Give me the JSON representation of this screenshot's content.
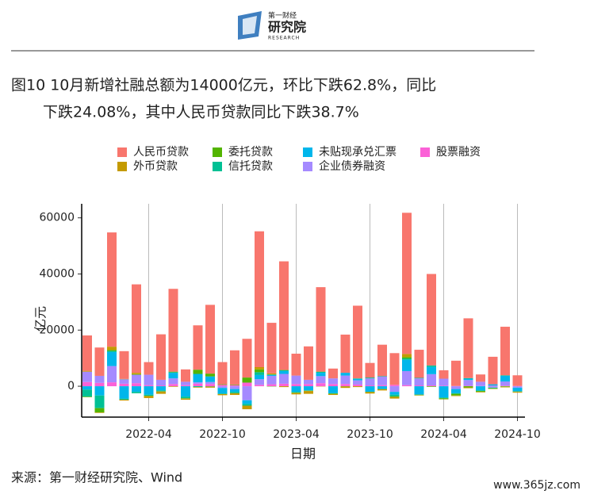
{
  "logo": {
    "name": "第一财经",
    "title": "研究院",
    "subtitle": "RESEARCH"
  },
  "source": "来源：第一财经研究院、Wind",
  "watermark": "www.365jz.com",
  "chart_data": {
    "type": "bar",
    "stacked": true,
    "title_lines": [
      "图10 10月新增社融总额为14000亿元，环比下跌62.8%，同比",
      "下跌24.08%，其中人民币贷款同比下跌38.7%"
    ],
    "x_label": "日期",
    "y_label": "亿元",
    "x": [
      "2021-11",
      "2021-12",
      "2022-01",
      "2022-02",
      "2022-03",
      "2022-04",
      "2022-05",
      "2022-06",
      "2022-07",
      "2022-08",
      "2022-09",
      "2022-10",
      "2022-11",
      "2022-12",
      "2023-01",
      "2023-02",
      "2023-03",
      "2023-04",
      "2023-05",
      "2023-06",
      "2023-07",
      "2023-08",
      "2023-09",
      "2023-10",
      "2023-11",
      "2023-12",
      "2024-01",
      "2024-02",
      "2024-03",
      "2024-04",
      "2024-05",
      "2024-06",
      "2024-07",
      "2024-08",
      "2024-09",
      "2024-10"
    ],
    "xticks": [
      "2022-04",
      "2022-10",
      "2023-04",
      "2023-10",
      "2024-04",
      "2024-10"
    ],
    "ylim": [
      -11000,
      65000
    ],
    "yticks": [
      0,
      20000,
      40000,
      60000
    ],
    "grid": "x",
    "legend": "top",
    "series": [
      {
        "name": "人民币贷款",
        "color": "#F8766D",
        "values": [
          12600,
          10100,
          40700,
          9900,
          31500,
          4500,
          16200,
          29500,
          4400,
          15800,
          24500,
          7900,
          12200,
          13800,
          48400,
          18000,
          38700,
          7800,
          11900,
          30100,
          3500,
          13600,
          25900,
          5200,
          11200,
          11300,
          50300,
          10000,
          32600,
          3000,
          9000,
          21300,
          2600,
          9800,
          17300,
          3800
        ]
      },
      {
        "name": "外币贷款",
        "color": "#C49A00",
        "values": [
          300,
          -200,
          1200,
          -300,
          500,
          -700,
          -800,
          -200,
          -400,
          -200,
          -400,
          -400,
          -600,
          -1300,
          800,
          400,
          -300,
          -500,
          -1000,
          -100,
          -300,
          -500,
          -300,
          -500,
          -400,
          -600,
          1100,
          -100,
          0,
          -100,
          -200,
          -300,
          -200,
          -100,
          -200,
          -300
        ]
      },
      {
        "name": "委托贷款",
        "color": "#53B400",
        "values": [
          -200,
          -1500,
          300,
          100,
          200,
          -100,
          -100,
          200,
          -100,
          1500,
          1000,
          200,
          200,
          1800,
          1000,
          -100,
          100,
          -100,
          -100,
          100,
          -200,
          -100,
          0,
          -100,
          -100,
          -200,
          500,
          -200,
          -200,
          -300,
          -600,
          -400,
          -300,
          -200,
          -200,
          -100
        ]
      },
      {
        "name": "信托贷款",
        "color": "#00C094",
        "values": [
          -2500,
          -4500,
          400,
          -400,
          -500,
          -400,
          -300,
          200,
          -600,
          -300,
          -100,
          -200,
          -500,
          -600,
          1000,
          200,
          300,
          -300,
          -100,
          300,
          -100,
          0,
          200,
          300,
          200,
          -600,
          500,
          200,
          500,
          -300,
          -200,
          200,
          -200,
          -200,
          200,
          -100
        ]
      },
      {
        "name": "未贴现承兑汇票",
        "color": "#00B6EB",
        "values": [
          -1200,
          -3300,
          5000,
          -4400,
          -2000,
          -3000,
          -1500,
          2000,
          -3700,
          3000,
          2000,
          -2000,
          -1000,
          -1300,
          1500,
          300,
          1000,
          -2000,
          -1500,
          1200,
          -2500,
          1000,
          500,
          -2000,
          -1000,
          -1000,
          4000,
          -3000,
          2600,
          -4000,
          -1500,
          500,
          -1500,
          500,
          2000,
          -1300
        ]
      },
      {
        "name": "企业债券融资",
        "color": "#A58AFF",
        "values": [
          3700,
          2500,
          5800,
          1600,
          3000,
          3700,
          2000,
          2000,
          1200,
          500,
          700,
          -600,
          -1000,
          -5000,
          2000,
          3000,
          3500,
          3000,
          1500,
          2500,
          2000,
          3000,
          1500,
          2500,
          3000,
          -2000,
          5000,
          2500,
          4000,
          2500,
          -1000,
          2000,
          1500,
          -500,
          1500,
          -500
        ]
      },
      {
        "name": "股票融资",
        "color": "#FB61D7",
        "values": [
          1500,
          1200,
          1400,
          900,
          1100,
          400,
          300,
          800,
          400,
          900,
          800,
          500,
          400,
          1300,
          500,
          700,
          900,
          800,
          800,
          1100,
          800,
          800,
          600,
          300,
          400,
          500,
          400,
          300,
          300,
          200,
          100,
          200,
          100,
          200,
          200,
          100
        ]
      }
    ]
  }
}
